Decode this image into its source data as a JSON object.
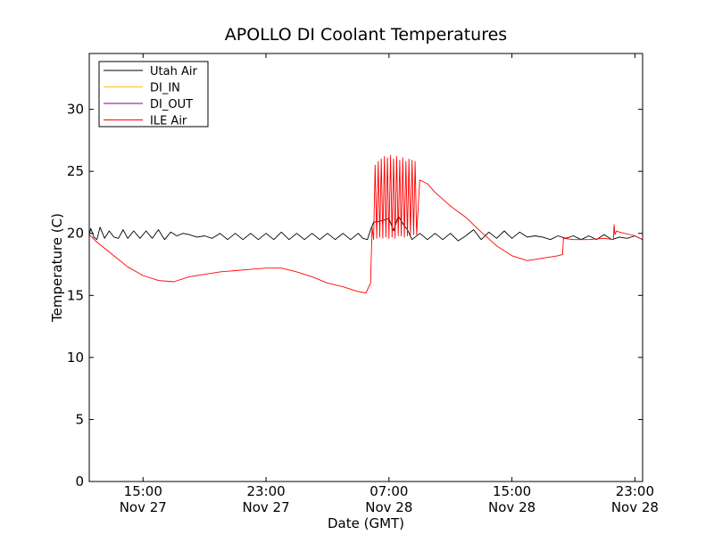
{
  "chart_data": {
    "type": "line",
    "title": "APOLLO DI Coolant Temperatures",
    "xlabel": "Date (GMT)",
    "ylabel": "Temperature (C)",
    "x_unit": "hours since Nov 27 00:00 GMT",
    "xlim": [
      11.5,
      47.5
    ],
    "ylim": [
      0,
      34.5
    ],
    "grid": false,
    "legend_position": "top-left",
    "yticks": [
      0,
      5,
      10,
      15,
      20,
      25,
      30
    ],
    "xticks": [
      {
        "value": 15,
        "time": "15:00",
        "date": "Nov 27"
      },
      {
        "value": 23,
        "time": "23:00",
        "date": "Nov 27"
      },
      {
        "value": 31,
        "time": "07:00",
        "date": "Nov 28"
      },
      {
        "value": 39,
        "time": "15:00",
        "date": "Nov 28"
      },
      {
        "value": 47,
        "time": "23:00",
        "date": "Nov 28"
      }
    ],
    "series": [
      {
        "name": "Utah Air",
        "color": "#000000",
        "x": [
          11.5,
          11.6,
          11.8,
          12.0,
          12.2,
          12.5,
          12.8,
          13.1,
          13.4,
          13.7,
          14.0,
          14.4,
          14.8,
          15.2,
          15.6,
          16.0,
          16.4,
          16.8,
          17.2,
          17.6,
          18.0,
          18.5,
          19.0,
          19.5,
          20.0,
          20.5,
          21.0,
          21.5,
          22.0,
          22.5,
          23.0,
          23.5,
          24.0,
          24.5,
          25.0,
          25.5,
          26.0,
          26.5,
          27.0,
          27.5,
          28.0,
          28.5,
          29.0,
          29.3,
          29.6,
          29.8,
          30.0,
          30.5,
          31.0,
          31.3,
          31.6,
          32.0,
          32.2,
          32.5,
          33.0,
          33.5,
          34.0,
          34.5,
          35.0,
          35.5,
          36.0,
          36.5,
          37.0,
          37.5,
          38.0,
          38.5,
          39.0,
          39.5,
          40.0,
          40.5,
          41.0,
          41.5,
          42.0,
          42.5,
          43.0,
          43.5,
          44.0,
          44.5,
          45.0,
          45.5,
          46.0,
          46.5,
          47.0,
          47.5
        ],
        "values": [
          19.9,
          20.4,
          19.7,
          19.5,
          20.5,
          19.6,
          20.2,
          19.7,
          19.6,
          20.3,
          19.6,
          20.2,
          19.6,
          20.2,
          19.6,
          20.3,
          19.5,
          20.1,
          19.8,
          20.0,
          19.9,
          19.7,
          19.8,
          19.6,
          20.0,
          19.5,
          20.0,
          19.5,
          20.0,
          19.5,
          20.0,
          19.5,
          20.1,
          19.5,
          20.0,
          19.5,
          20.0,
          19.5,
          20.0,
          19.5,
          20.0,
          19.5,
          20.0,
          19.6,
          19.5,
          20.3,
          20.9,
          21.0,
          21.2,
          20.2,
          21.4,
          20.6,
          20.3,
          19.5,
          20.0,
          19.5,
          20.0,
          19.5,
          20.0,
          19.4,
          19.8,
          20.3,
          19.5,
          20.1,
          19.6,
          20.2,
          19.6,
          20.1,
          19.7,
          19.8,
          19.7,
          19.5,
          19.8,
          19.6,
          19.8,
          19.5,
          19.8,
          19.5,
          19.9,
          19.5,
          19.7,
          19.6,
          19.8,
          19.5
        ]
      },
      {
        "name": "DI_IN",
        "color": "#ffbf00",
        "x": [],
        "values": []
      },
      {
        "name": "DI_OUT",
        "color": "#800080",
        "x": [],
        "values": []
      },
      {
        "name": "ILE Air",
        "color": "#ff0000",
        "x": [
          11.5,
          12.0,
          13.0,
          14.0,
          15.0,
          16.0,
          17.0,
          18.0,
          19.0,
          20.0,
          21.0,
          22.0,
          23.0,
          24.0,
          25.0,
          26.0,
          27.0,
          28.0,
          29.0,
          29.5,
          29.8,
          29.9,
          30.0,
          30.1,
          30.2,
          30.3,
          30.4,
          30.5,
          30.6,
          30.7,
          30.8,
          30.9,
          31.0,
          31.1,
          31.2,
          31.3,
          31.4,
          31.5,
          31.6,
          31.7,
          31.8,
          31.9,
          32.0,
          32.1,
          32.2,
          32.3,
          32.4,
          32.5,
          32.6,
          32.7,
          32.8,
          33.0,
          33.5,
          34.0,
          35.0,
          36.0,
          37.0,
          38.0,
          39.0,
          40.0,
          41.0,
          42.0,
          42.3,
          42.35,
          43.0,
          44.0,
          45.0,
          45.6,
          45.65,
          45.7,
          45.8,
          46.0,
          47.0,
          47.5
        ],
        "values": [
          19.9,
          19.3,
          18.3,
          17.3,
          16.6,
          16.2,
          16.1,
          16.5,
          16.7,
          16.9,
          17.0,
          17.1,
          17.2,
          17.2,
          16.9,
          16.5,
          16.0,
          15.7,
          15.3,
          15.2,
          16.0,
          20.5,
          19.5,
          25.5,
          19.6,
          25.8,
          19.7,
          26.0,
          19.6,
          26.2,
          19.7,
          26.1,
          19.6,
          26.3,
          19.7,
          26.0,
          19.6,
          26.2,
          19.8,
          25.9,
          19.8,
          26.1,
          19.7,
          25.8,
          19.8,
          26.0,
          19.9,
          25.9,
          19.9,
          25.8,
          19.9,
          24.3,
          24.0,
          23.3,
          22.2,
          21.3,
          20.1,
          19.0,
          18.2,
          17.8,
          18.0,
          18.2,
          18.3,
          19.6,
          19.5,
          19.5,
          19.6,
          19.5,
          20.7,
          19.9,
          20.2,
          20.1,
          19.8,
          19.5
        ]
      }
    ]
  }
}
